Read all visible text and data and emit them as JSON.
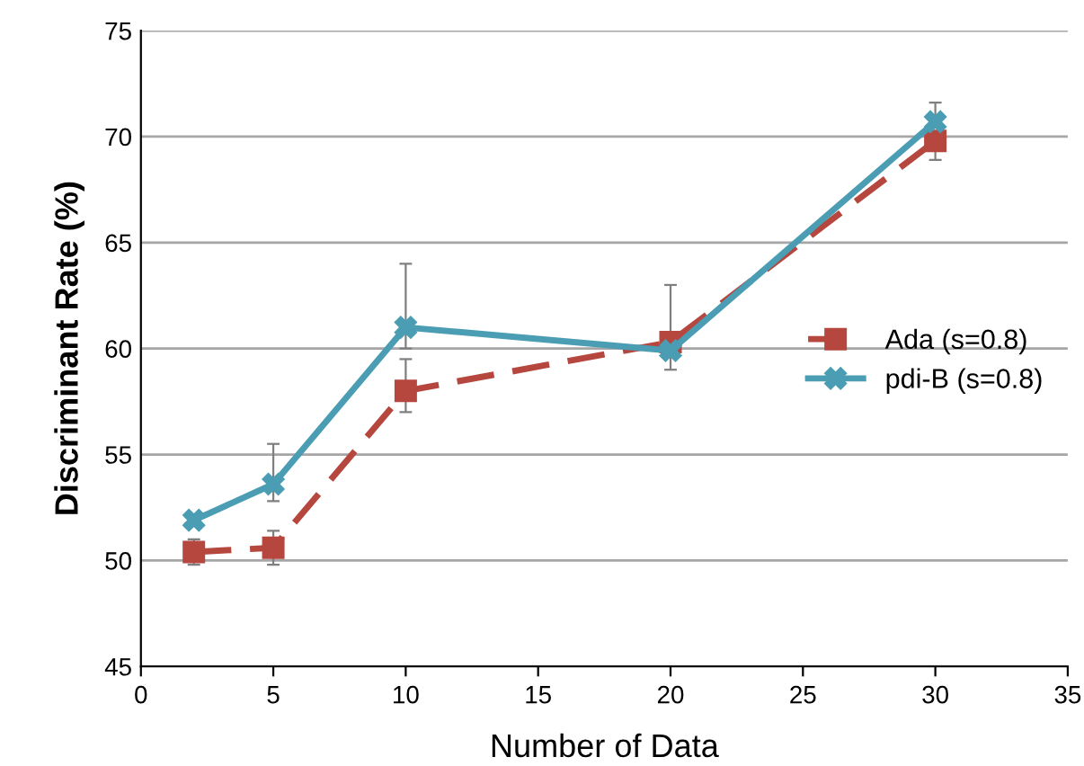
{
  "chart_data": {
    "type": "line",
    "xlabel": "Number of Data",
    "ylabel": "Discriminant Rate (%)",
    "x": [
      2,
      5,
      10,
      20,
      30
    ],
    "series": [
      {
        "name": "Ada (s=0.8)",
        "color": "#b5473f",
        "marker": "square",
        "line_style": "dashed",
        "values": [
          50.4,
          50.6,
          58.0,
          60.3,
          69.8
        ],
        "errors": [
          [
            49.8,
            51.0
          ],
          [
            49.8,
            51.4
          ],
          [
            57.0,
            59.5
          ],
          null,
          [
            68.9,
            69.8
          ]
        ]
      },
      {
        "name": "pdi-B (s=0.8)",
        "color": "#4a9db3",
        "marker": "cross",
        "line_style": "solid",
        "values": [
          51.9,
          53.6,
          61.0,
          59.9,
          70.7
        ],
        "errors": [
          null,
          [
            52.8,
            55.5
          ],
          [
            60.0,
            64.0
          ],
          [
            59.0,
            63.0
          ],
          [
            70.7,
            71.6
          ]
        ]
      }
    ],
    "xlim": [
      0,
      35
    ],
    "xticks": [
      0,
      5,
      10,
      15,
      20,
      25,
      30,
      35
    ],
    "ylim": [
      45,
      75
    ],
    "yticks": [
      45,
      50,
      55,
      60,
      65,
      70,
      75
    ],
    "grid": "y",
    "legend": "right"
  }
}
